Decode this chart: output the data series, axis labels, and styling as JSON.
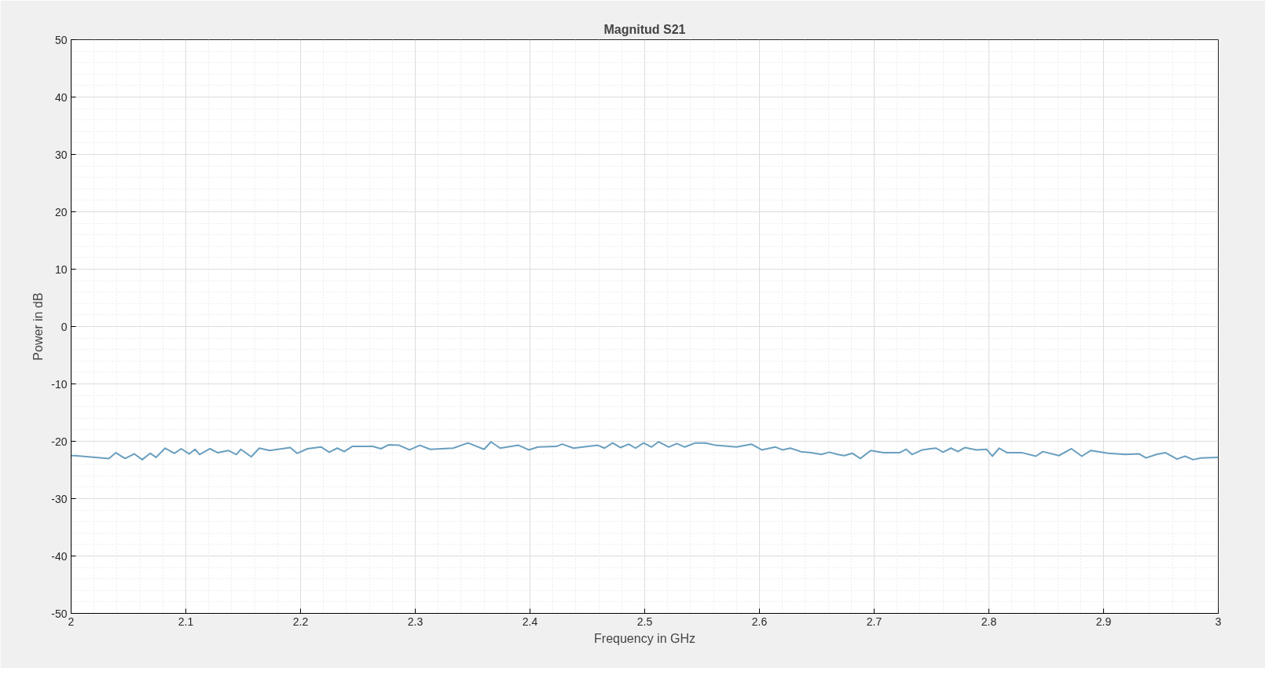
{
  "chart_data": {
    "type": "line",
    "title": "Magnitud S21",
    "xlabel": "Frequency in GHz",
    "ylabel": "Power in dB",
    "xlim": [
      2,
      3
    ],
    "ylim": [
      -50,
      50
    ],
    "xticks": [
      2,
      2.1,
      2.2,
      2.3,
      2.4,
      2.5,
      2.6,
      2.7,
      2.8,
      2.9,
      3
    ],
    "yticks": [
      -50,
      -40,
      -30,
      -20,
      -10,
      0,
      10,
      20,
      30,
      40,
      50
    ],
    "grid": true,
    "marker": "none",
    "line_style": "solid",
    "series": [
      {
        "color": "#6a9fbf",
        "x": [
          2.0,
          2.003,
          2.033,
          2.039,
          2.047,
          2.055,
          2.062,
          2.069,
          2.074,
          2.082,
          2.09,
          2.096,
          2.103,
          2.108,
          2.112,
          2.121,
          2.128,
          2.137,
          2.144,
          2.148,
          2.157,
          2.164,
          2.173,
          2.191,
          2.197,
          2.206,
          2.218,
          2.225,
          2.232,
          2.238,
          2.245,
          2.263,
          2.27,
          2.277,
          2.286,
          2.295,
          2.304,
          2.313,
          2.333,
          2.343,
          2.346,
          2.36,
          2.366,
          2.374,
          2.39,
          2.399,
          2.407,
          2.423,
          2.428,
          2.438,
          2.459,
          2.465,
          2.472,
          2.479,
          2.486,
          2.492,
          2.499,
          2.506,
          2.512,
          2.521,
          2.528,
          2.535,
          2.544,
          2.553,
          2.562,
          2.58,
          2.593,
          2.602,
          2.614,
          2.62,
          2.627,
          2.636,
          2.645,
          2.654,
          2.661,
          2.668,
          2.674,
          2.681,
          2.688,
          2.697,
          2.708,
          2.722,
          2.728,
          2.733,
          2.742,
          2.749,
          2.754,
          2.76,
          2.767,
          2.773,
          2.779,
          2.789,
          2.798,
          2.803,
          2.809,
          2.816,
          2.829,
          2.841,
          2.847,
          2.861,
          2.872,
          2.881,
          2.889,
          2.904,
          2.919,
          2.931,
          2.937,
          2.946,
          2.954,
          2.964,
          2.971,
          2.978,
          2.985,
          3.0
        ],
        "values": [
          -22.5,
          -22.5,
          -23.0,
          -22.0,
          -23.0,
          -22.2,
          -23.2,
          -22.1,
          -22.8,
          -21.2,
          -22.1,
          -21.3,
          -22.2,
          -21.4,
          -22.3,
          -21.3,
          -22.0,
          -21.6,
          -22.3,
          -21.4,
          -22.7,
          -21.2,
          -21.6,
          -21.1,
          -22.1,
          -21.3,
          -21.0,
          -21.9,
          -21.2,
          -21.8,
          -20.9,
          -20.9,
          -21.3,
          -20.6,
          -20.7,
          -21.5,
          -20.7,
          -21.4,
          -21.2,
          -20.5,
          -20.3,
          -21.4,
          -20.1,
          -21.2,
          -20.7,
          -21.5,
          -21.0,
          -20.9,
          -20.5,
          -21.2,
          -20.7,
          -21.2,
          -20.3,
          -21.1,
          -20.5,
          -21.2,
          -20.3,
          -21.0,
          -20.1,
          -21.0,
          -20.4,
          -21.0,
          -20.3,
          -20.3,
          -20.7,
          -21.0,
          -20.5,
          -21.5,
          -21.0,
          -21.5,
          -21.2,
          -21.8,
          -22.0,
          -22.3,
          -21.9,
          -22.3,
          -22.5,
          -22.1,
          -23.0,
          -21.6,
          -22.0,
          -22.0,
          -21.4,
          -22.3,
          -21.5,
          -21.3,
          -21.2,
          -21.9,
          -21.2,
          -21.8,
          -21.1,
          -21.5,
          -21.4,
          -22.6,
          -21.2,
          -22.0,
          -22.0,
          -22.6,
          -21.8,
          -22.5,
          -21.3,
          -22.6,
          -21.6,
          -22.1,
          -22.3,
          -22.2,
          -22.9,
          -22.3,
          -22.0,
          -23.1,
          -22.6,
          -23.2,
          -22.9,
          -22.8
        ]
      }
    ]
  }
}
